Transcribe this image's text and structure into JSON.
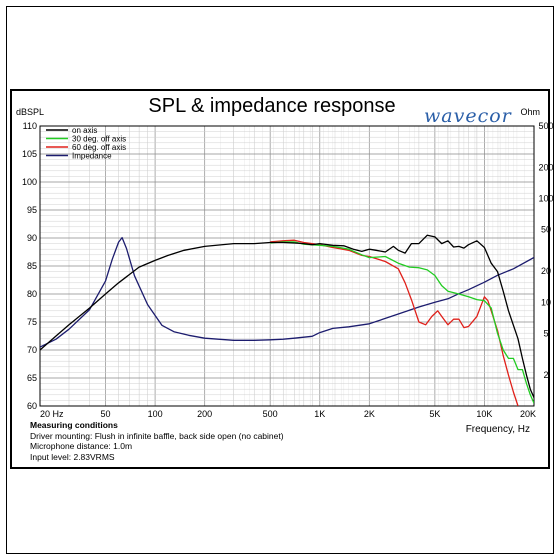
{
  "chart_data": {
    "type": "line",
    "title": "SPL & impedance response",
    "brand": "wavecor",
    "ylabel_left": "dBSPL",
    "ylabel_right": "Ohm",
    "xlabel": "Frequency, Hz",
    "xscale": "log",
    "xlim": [
      20,
      20000
    ],
    "ylim_left": [
      60,
      110
    ],
    "ylim_right_log": [
      1,
      500
    ],
    "x_ticks": [
      "20 Hz",
      "50",
      "100",
      "200",
      "500",
      "1K",
      "2K",
      "5K",
      "10K",
      "20K"
    ],
    "y_ticks_left": [
      "110",
      "105",
      "100",
      "95",
      "90",
      "85",
      "80",
      "75",
      "70",
      "65",
      "60"
    ],
    "y_ticks_right": [
      "500",
      "200",
      "100",
      "50",
      "20",
      "10",
      "5",
      "2"
    ],
    "grid": true,
    "legend_position": "top-left",
    "series": [
      {
        "name": "on axis",
        "axis": "left",
        "color": "#000000",
        "points": [
          [
            20,
            70
          ],
          [
            25,
            72.5
          ],
          [
            30,
            74.5
          ],
          [
            40,
            77.5
          ],
          [
            50,
            80
          ],
          [
            60,
            82
          ],
          [
            70,
            83.5
          ],
          [
            80,
            84.8
          ],
          [
            100,
            86
          ],
          [
            120,
            86.9
          ],
          [
            150,
            87.8
          ],
          [
            200,
            88.5
          ],
          [
            300,
            89
          ],
          [
            400,
            89
          ],
          [
            500,
            89.2
          ],
          [
            600,
            89.2
          ],
          [
            700,
            89.1
          ],
          [
            800,
            89
          ],
          [
            900,
            88.8
          ],
          [
            1000,
            89
          ],
          [
            1200,
            88.7
          ],
          [
            1400,
            88.6
          ],
          [
            1600,
            88
          ],
          [
            1800,
            87.6
          ],
          [
            2000,
            88
          ],
          [
            2200,
            87.8
          ],
          [
            2500,
            87.5
          ],
          [
            2800,
            88.5
          ],
          [
            3000,
            87.8
          ],
          [
            3300,
            87.3
          ],
          [
            3600,
            89
          ],
          [
            4000,
            89
          ],
          [
            4500,
            90.5
          ],
          [
            5000,
            90.2
          ],
          [
            5500,
            89
          ],
          [
            6000,
            89.5
          ],
          [
            6500,
            88.4
          ],
          [
            7000,
            88.5
          ],
          [
            7500,
            88.2
          ],
          [
            8000,
            88.8
          ],
          [
            9000,
            89.5
          ],
          [
            10000,
            88.3
          ],
          [
            11000,
            85.5
          ],
          [
            12000,
            84
          ],
          [
            13000,
            80.5
          ],
          [
            14000,
            77
          ],
          [
            16000,
            72
          ],
          [
            17000,
            68.5
          ],
          [
            18000,
            65.5
          ],
          [
            19000,
            63
          ],
          [
            20000,
            61.5
          ]
        ]
      },
      {
        "name": "30 deg. off axis",
        "axis": "left",
        "color": "#22cc22",
        "points": [
          [
            500,
            89.1
          ],
          [
            600,
            89.3
          ],
          [
            700,
            89.3
          ],
          [
            800,
            88.9
          ],
          [
            1000,
            88.7
          ],
          [
            1200,
            88.5
          ],
          [
            1500,
            88
          ],
          [
            1800,
            87
          ],
          [
            2000,
            86.5
          ],
          [
            2500,
            86.7
          ],
          [
            3000,
            85.5
          ],
          [
            3500,
            84.8
          ],
          [
            4000,
            84.7
          ],
          [
            4500,
            84.3
          ],
          [
            5000,
            83.3
          ],
          [
            5500,
            81.5
          ],
          [
            6000,
            80.5
          ],
          [
            7000,
            80
          ],
          [
            8000,
            79.5
          ],
          [
            9000,
            79
          ],
          [
            10000,
            78.8
          ],
          [
            11000,
            77.5
          ],
          [
            12000,
            73
          ],
          [
            13000,
            70
          ],
          [
            14000,
            68.5
          ],
          [
            15000,
            68.5
          ],
          [
            16000,
            66.5
          ],
          [
            17000,
            66.5
          ],
          [
            18000,
            64
          ],
          [
            19000,
            62
          ],
          [
            20000,
            60.5
          ]
        ]
      },
      {
        "name": "60 deg. off axis",
        "axis": "left",
        "color": "#e0201a",
        "points": [
          [
            500,
            89.3
          ],
          [
            600,
            89.5
          ],
          [
            700,
            89.6
          ],
          [
            800,
            89.2
          ],
          [
            1000,
            88.8
          ],
          [
            1200,
            88.3
          ],
          [
            1500,
            87.8
          ],
          [
            1800,
            86.9
          ],
          [
            2000,
            86.7
          ],
          [
            2500,
            85.8
          ],
          [
            3000,
            84.5
          ],
          [
            3300,
            82
          ],
          [
            3600,
            79
          ],
          [
            4000,
            75
          ],
          [
            4400,
            74.5
          ],
          [
            4800,
            76
          ],
          [
            5200,
            77
          ],
          [
            5500,
            76
          ],
          [
            6000,
            74.5
          ],
          [
            6500,
            75.5
          ],
          [
            7000,
            75.5
          ],
          [
            7500,
            74
          ],
          [
            8000,
            74.2
          ],
          [
            9000,
            76
          ],
          [
            10000,
            79.5
          ],
          [
            10500,
            78.8
          ],
          [
            11000,
            77
          ],
          [
            12000,
            73.5
          ],
          [
            13000,
            69
          ],
          [
            14000,
            65.5
          ],
          [
            15000,
            62.5
          ],
          [
            16000,
            60
          ]
        ]
      },
      {
        "name": "Impedance",
        "axis": "right",
        "color": "#1c1c6e",
        "points": [
          [
            20,
            3.7
          ],
          [
            25,
            4.4
          ],
          [
            30,
            5.5
          ],
          [
            40,
            8.5
          ],
          [
            50,
            16
          ],
          [
            55,
            26
          ],
          [
            60,
            38
          ],
          [
            63,
            42
          ],
          [
            67,
            33
          ],
          [
            75,
            18
          ],
          [
            90,
            9.5
          ],
          [
            110,
            6
          ],
          [
            130,
            5.2
          ],
          [
            160,
            4.8
          ],
          [
            200,
            4.5
          ],
          [
            300,
            4.3
          ],
          [
            400,
            4.3
          ],
          [
            500,
            4.35
          ],
          [
            600,
            4.4
          ],
          [
            700,
            4.5
          ],
          [
            800,
            4.6
          ],
          [
            900,
            4.7
          ],
          [
            1000,
            5.1
          ],
          [
            1200,
            5.6
          ],
          [
            1500,
            5.8
          ],
          [
            2000,
            6.2
          ],
          [
            3000,
            7.7
          ],
          [
            4000,
            9
          ],
          [
            5000,
            10
          ],
          [
            6000,
            10.8
          ],
          [
            7000,
            12.1
          ],
          [
            8000,
            13.2
          ],
          [
            10000,
            15.6
          ],
          [
            12000,
            18.2
          ],
          [
            15000,
            21
          ],
          [
            20000,
            27
          ]
        ]
      }
    ]
  },
  "conditions": {
    "heading": "Measuring conditions",
    "lines": [
      "Driver mounting: Flush in infinite baffle, back side open (no cabinet)",
      "Microphone distance: 1.0m",
      "Input level: 2.83VRMS"
    ]
  }
}
